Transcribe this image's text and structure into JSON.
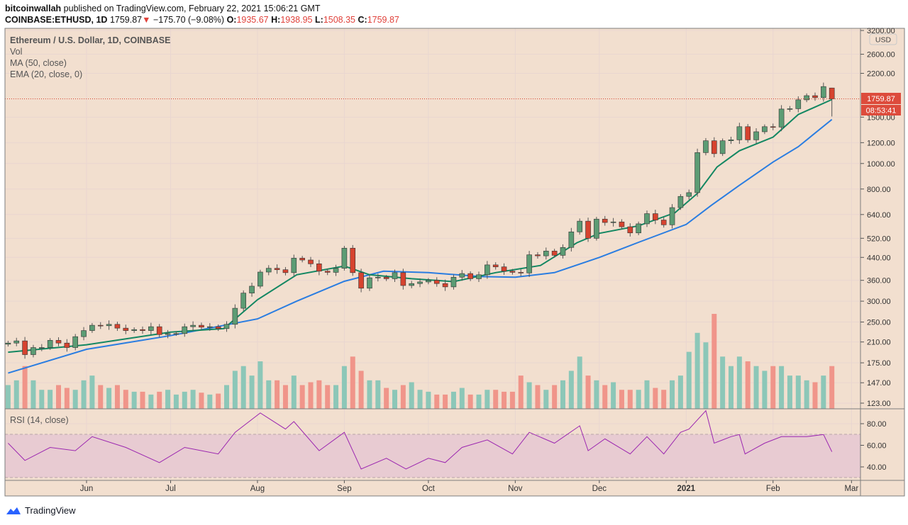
{
  "header": {
    "author": "bitcoinwallah",
    "published_text": "published on TradingView.com, February 22, 2021 15:06:21 GMT",
    "symbol": "COINBASE:ETHUSD, 1D",
    "last": "1759.87",
    "change": "−175.70 (−9.08%)",
    "o_label": "O:",
    "o": "1935.67",
    "h_label": "H:",
    "h": "1938.95",
    "l_label": "L:",
    "l": "1508.35",
    "c_label": "C:",
    "c": "1759.87",
    "down_arrow_icon": "triangle-down"
  },
  "legend": {
    "title": "Ethereum / U.S. Dollar, 1D, COINBASE",
    "vol": "Vol",
    "ma": "MA (50, close)",
    "ema": "EMA (20, close, 0)",
    "rsi": "RSI (14, close)"
  },
  "price_axis": {
    "currency": "USD",
    "ticks": [
      "3200.00",
      "2600.00",
      "2200.00",
      "1500.00",
      "1200.00",
      "1000.00",
      "800.00",
      "640.00",
      "520.00",
      "440.00",
      "360.00",
      "300.00",
      "250.00",
      "210.00",
      "175.00",
      "147.00",
      "123.00"
    ],
    "last_price_tag": "1759.87",
    "countdown_tag": "08:53:41"
  },
  "rsi_axis": {
    "ticks": [
      "80.00",
      "60.00",
      "40.00"
    ]
  },
  "time_axis": {
    "ticks": [
      {
        "label": "Jun",
        "date": "2020-06-01"
      },
      {
        "label": "Jul",
        "date": "2020-07-01"
      },
      {
        "label": "Aug",
        "date": "2020-08-01"
      },
      {
        "label": "Sep",
        "date": "2020-09-01"
      },
      {
        "label": "Oct",
        "date": "2020-10-01"
      },
      {
        "label": "Nov",
        "date": "2020-11-01"
      },
      {
        "label": "Dec",
        "date": "2020-12-01"
      },
      {
        "label": "2021",
        "date": "2021-01-01"
      },
      {
        "label": "Feb",
        "date": "2021-02-01"
      },
      {
        "label": "Mar",
        "date": "2021-03-01"
      }
    ]
  },
  "footer": {
    "brand": "TradingView"
  },
  "colors": {
    "background": "#f2dfcf",
    "up": "#5c9c74",
    "down": "#d6432f",
    "ema": "#138762",
    "ma": "#2a7de1",
    "rsi_line": "#9c27b0",
    "rsi_band": "#e8cbd2",
    "vol_up": "#8cc7b8",
    "vol_down": "#f0958a",
    "tag": "#dd4b3c"
  },
  "chart_data": {
    "type": "candlestick",
    "yscale": "log",
    "ylim": [
      123,
      3200
    ],
    "grid": true,
    "last_candle": {
      "date": "2021-02-22",
      "open": 1935.67,
      "high": 1938.95,
      "low": 1508.35,
      "close": 1759.87
    },
    "closes": [
      [
        "2020-05-04",
        208
      ],
      [
        "2020-05-07",
        212
      ],
      [
        "2020-05-10",
        188
      ],
      [
        "2020-05-13",
        200
      ],
      [
        "2020-05-16",
        200
      ],
      [
        "2020-05-19",
        213
      ],
      [
        "2020-05-22",
        208
      ],
      [
        "2020-05-25",
        200
      ],
      [
        "2020-05-28",
        220
      ],
      [
        "2020-05-31",
        232
      ],
      [
        "2020-06-03",
        243
      ],
      [
        "2020-06-06",
        242
      ],
      [
        "2020-06-09",
        245
      ],
      [
        "2020-06-12",
        237
      ],
      [
        "2020-06-15",
        232
      ],
      [
        "2020-06-18",
        234
      ],
      [
        "2020-06-21",
        232
      ],
      [
        "2020-06-24",
        240
      ],
      [
        "2020-06-27",
        224
      ],
      [
        "2020-06-30",
        226
      ],
      [
        "2020-07-03",
        226
      ],
      [
        "2020-07-06",
        240
      ],
      [
        "2020-07-09",
        243
      ],
      [
        "2020-07-12",
        239
      ],
      [
        "2020-07-15",
        240
      ],
      [
        "2020-07-18",
        236
      ],
      [
        "2020-07-21",
        245
      ],
      [
        "2020-07-24",
        282
      ],
      [
        "2020-07-27",
        322
      ],
      [
        "2020-07-30",
        342
      ],
      [
        "2020-08-02",
        387
      ],
      [
        "2020-08-05",
        400
      ],
      [
        "2020-08-08",
        395
      ],
      [
        "2020-08-11",
        385
      ],
      [
        "2020-08-14",
        437
      ],
      [
        "2020-08-17",
        430
      ],
      [
        "2020-08-20",
        416
      ],
      [
        "2020-08-23",
        390
      ],
      [
        "2020-08-26",
        386
      ],
      [
        "2020-08-29",
        400
      ],
      [
        "2020-09-01",
        477
      ],
      [
        "2020-09-04",
        385
      ],
      [
        "2020-09-07",
        336
      ],
      [
        "2020-09-10",
        368
      ],
      [
        "2020-09-13",
        370
      ],
      [
        "2020-09-16",
        365
      ],
      [
        "2020-09-19",
        385
      ],
      [
        "2020-09-22",
        344
      ],
      [
        "2020-09-25",
        350
      ],
      [
        "2020-09-28",
        355
      ],
      [
        "2020-10-01",
        360
      ],
      [
        "2020-10-04",
        350
      ],
      [
        "2020-10-07",
        340
      ],
      [
        "2020-10-10",
        370
      ],
      [
        "2020-10-13",
        382
      ],
      [
        "2020-10-16",
        365
      ],
      [
        "2020-10-19",
        378
      ],
      [
        "2020-10-22",
        412
      ],
      [
        "2020-10-25",
        405
      ],
      [
        "2020-10-28",
        390
      ],
      [
        "2020-10-31",
        386
      ],
      [
        "2020-11-03",
        384
      ],
      [
        "2020-11-06",
        450
      ],
      [
        "2020-11-09",
        446
      ],
      [
        "2020-11-12",
        465
      ],
      [
        "2020-11-15",
        448
      ],
      [
        "2020-11-18",
        480
      ],
      [
        "2020-11-21",
        550
      ],
      [
        "2020-11-24",
        604
      ],
      [
        "2020-11-27",
        520
      ],
      [
        "2020-11-30",
        615
      ],
      [
        "2020-12-03",
        597
      ],
      [
        "2020-12-06",
        600
      ],
      [
        "2020-12-09",
        575
      ],
      [
        "2020-12-12",
        545
      ],
      [
        "2020-12-15",
        590
      ],
      [
        "2020-12-18",
        645
      ],
      [
        "2020-12-21",
        610
      ],
      [
        "2020-12-24",
        585
      ],
      [
        "2020-12-27",
        680
      ],
      [
        "2020-12-30",
        750
      ],
      [
        "2021-01-02",
        775
      ],
      [
        "2021-01-05",
        1100
      ],
      [
        "2021-01-08",
        1220
      ],
      [
        "2021-01-11",
        1090
      ],
      [
        "2021-01-14",
        1220
      ],
      [
        "2021-01-17",
        1230
      ],
      [
        "2021-01-20",
        1380
      ],
      [
        "2021-01-23",
        1230
      ],
      [
        "2021-01-26",
        1320
      ],
      [
        "2021-01-29",
        1380
      ],
      [
        "2021-02-01",
        1375
      ],
      [
        "2021-02-04",
        1610
      ],
      [
        "2021-02-07",
        1615
      ],
      [
        "2021-02-10",
        1745
      ],
      [
        "2021-02-13",
        1810
      ],
      [
        "2021-02-16",
        1780
      ],
      [
        "2021-02-19",
        1960
      ],
      [
        "2021-02-22",
        1760
      ]
    ],
    "volume_relative": [
      25,
      30,
      45,
      30,
      20,
      20,
      25,
      22,
      20,
      30,
      35,
      25,
      22,
      25,
      20,
      18,
      18,
      15,
      18,
      20,
      15,
      18,
      20,
      17,
      15,
      16,
      25,
      40,
      45,
      35,
      50,
      30,
      30,
      25,
      35,
      25,
      28,
      30,
      25,
      25,
      45,
      55,
      40,
      30,
      30,
      22,
      20,
      25,
      28,
      20,
      18,
      15,
      15,
      18,
      22,
      15,
      15,
      20,
      20,
      18,
      18,
      35,
      28,
      25,
      20,
      25,
      30,
      40,
      55,
      35,
      30,
      25,
      28,
      20,
      20,
      20,
      30,
      22,
      20,
      30,
      35,
      60,
      80,
      70,
      100,
      55,
      45,
      55,
      50,
      45,
      40,
      45,
      45,
      35,
      35,
      30,
      28,
      35,
      45
    ],
    "ma50": [
      [
        "2020-05-04",
        160
      ],
      [
        "2020-06-01",
        197
      ],
      [
        "2020-07-01",
        222
      ],
      [
        "2020-08-01",
        257
      ],
      [
        "2020-08-15",
        300
      ],
      [
        "2020-09-01",
        357
      ],
      [
        "2020-09-15",
        390
      ],
      [
        "2020-10-01",
        385
      ],
      [
        "2020-10-20",
        372
      ],
      [
        "2020-11-01",
        370
      ],
      [
        "2020-11-15",
        385
      ],
      [
        "2020-12-01",
        440
      ],
      [
        "2020-12-15",
        502
      ],
      [
        "2021-01-01",
        587
      ],
      [
        "2021-01-10",
        694
      ],
      [
        "2021-01-20",
        826
      ],
      [
        "2021-02-01",
        1013
      ],
      [
        "2021-02-10",
        1158
      ],
      [
        "2021-02-22",
        1470
      ]
    ],
    "ema20": [
      [
        "2020-05-04",
        192
      ],
      [
        "2020-06-01",
        205
      ],
      [
        "2020-07-01",
        229
      ],
      [
        "2020-07-20",
        236
      ],
      [
        "2020-08-01",
        304
      ],
      [
        "2020-08-15",
        378
      ],
      [
        "2020-09-01",
        408
      ],
      [
        "2020-09-10",
        378
      ],
      [
        "2020-09-25",
        365
      ],
      [
        "2020-10-10",
        356
      ],
      [
        "2020-10-25",
        385
      ],
      [
        "2020-11-10",
        410
      ],
      [
        "2020-11-23",
        500
      ],
      [
        "2020-12-01",
        543
      ],
      [
        "2020-12-15",
        580
      ],
      [
        "2020-12-28",
        650
      ],
      [
        "2021-01-05",
        770
      ],
      [
        "2021-01-12",
        970
      ],
      [
        "2021-01-20",
        1118
      ],
      [
        "2021-02-01",
        1260
      ],
      [
        "2021-02-10",
        1535
      ],
      [
        "2021-02-22",
        1750
      ]
    ],
    "rsi": {
      "ylim": [
        30,
        90
      ],
      "overbought": 70,
      "oversold": 30,
      "values": [
        [
          "2020-05-04",
          62
        ],
        [
          "2020-05-10",
          46
        ],
        [
          "2020-05-19",
          58
        ],
        [
          "2020-05-28",
          55
        ],
        [
          "2020-06-03",
          68
        ],
        [
          "2020-06-15",
          58
        ],
        [
          "2020-06-27",
          44
        ],
        [
          "2020-07-06",
          58
        ],
        [
          "2020-07-18",
          52
        ],
        [
          "2020-07-24",
          72
        ],
        [
          "2020-08-02",
          90
        ],
        [
          "2020-08-11",
          75
        ],
        [
          "2020-08-14",
          82
        ],
        [
          "2020-08-23",
          55
        ],
        [
          "2020-09-01",
          72
        ],
        [
          "2020-09-07",
          38
        ],
        [
          "2020-09-16",
          48
        ],
        [
          "2020-09-23",
          38
        ],
        [
          "2020-10-01",
          48
        ],
        [
          "2020-10-07",
          44
        ],
        [
          "2020-10-13",
          58
        ],
        [
          "2020-10-22",
          65
        ],
        [
          "2020-10-31",
          52
        ],
        [
          "2020-11-06",
          72
        ],
        [
          "2020-11-15",
          62
        ],
        [
          "2020-11-24",
          78
        ],
        [
          "2020-11-27",
          55
        ],
        [
          "2020-12-03",
          66
        ],
        [
          "2020-12-12",
          52
        ],
        [
          "2020-12-18",
          68
        ],
        [
          "2020-12-24",
          52
        ],
        [
          "2020-12-30",
          72
        ],
        [
          "2021-01-02",
          75
        ],
        [
          "2021-01-08",
          92
        ],
        [
          "2021-01-11",
          62
        ],
        [
          "2021-01-17",
          68
        ],
        [
          "2021-01-20",
          70
        ],
        [
          "2021-01-22",
          52
        ],
        [
          "2021-01-29",
          62
        ],
        [
          "2021-02-04",
          68
        ],
        [
          "2021-02-13",
          68
        ],
        [
          "2021-02-19",
          70
        ],
        [
          "2021-02-22",
          54
        ]
      ]
    }
  }
}
